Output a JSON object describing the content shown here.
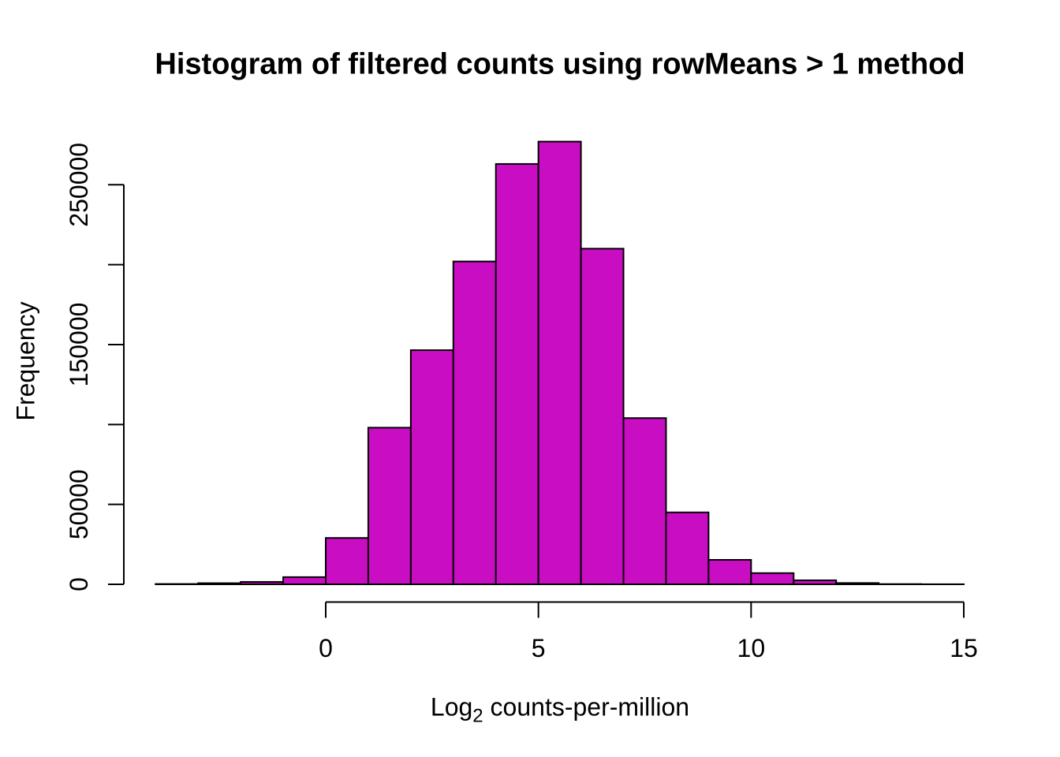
{
  "figure": {
    "title": "Histogram of filtered counts using rowMeans > 1 method",
    "ylabel": "Frequency",
    "xlabel": {
      "prefix": "Log",
      "subscript": "2",
      "suffix": " counts-per-million"
    }
  },
  "chart_data": {
    "type": "bar",
    "subtype": "histogram",
    "title": "Histogram of filtered counts using rowMeans > 1 method",
    "xlabel": "Log2 counts-per-million",
    "ylabel": "Frequency",
    "xlim": [
      -4,
      15
    ],
    "ylim": [
      0,
      277000
    ],
    "grid": false,
    "legend": null,
    "bin_breaks": [
      -4,
      -3,
      -2,
      -1,
      0,
      1,
      2,
      3,
      4,
      5,
      6,
      7,
      8,
      9,
      10,
      11,
      12,
      13,
      14,
      15
    ],
    "counts": [
      200,
      700,
      1500,
      4500,
      29000,
      98000,
      146500,
      202000,
      263000,
      277000,
      210000,
      104000,
      45000,
      15300,
      7000,
      2500,
      800,
      150,
      50
    ],
    "x_ticks": [
      {
        "value": 0,
        "label": "0"
      },
      {
        "value": 5,
        "label": "5"
      },
      {
        "value": 10,
        "label": "10"
      },
      {
        "value": 15,
        "label": "15"
      }
    ],
    "y_ticks": [
      {
        "value": 0,
        "label": "0"
      },
      {
        "value": 50000,
        "label": "50000"
      },
      {
        "value": 100000,
        "label": ""
      },
      {
        "value": 150000,
        "label": "150000"
      },
      {
        "value": 200000,
        "label": ""
      },
      {
        "value": 250000,
        "label": "250000"
      }
    ],
    "colors": {
      "bar_fill": "#C90DC3",
      "bar_stroke": "#000000",
      "axis": "#000000",
      "text": "#000000"
    }
  }
}
